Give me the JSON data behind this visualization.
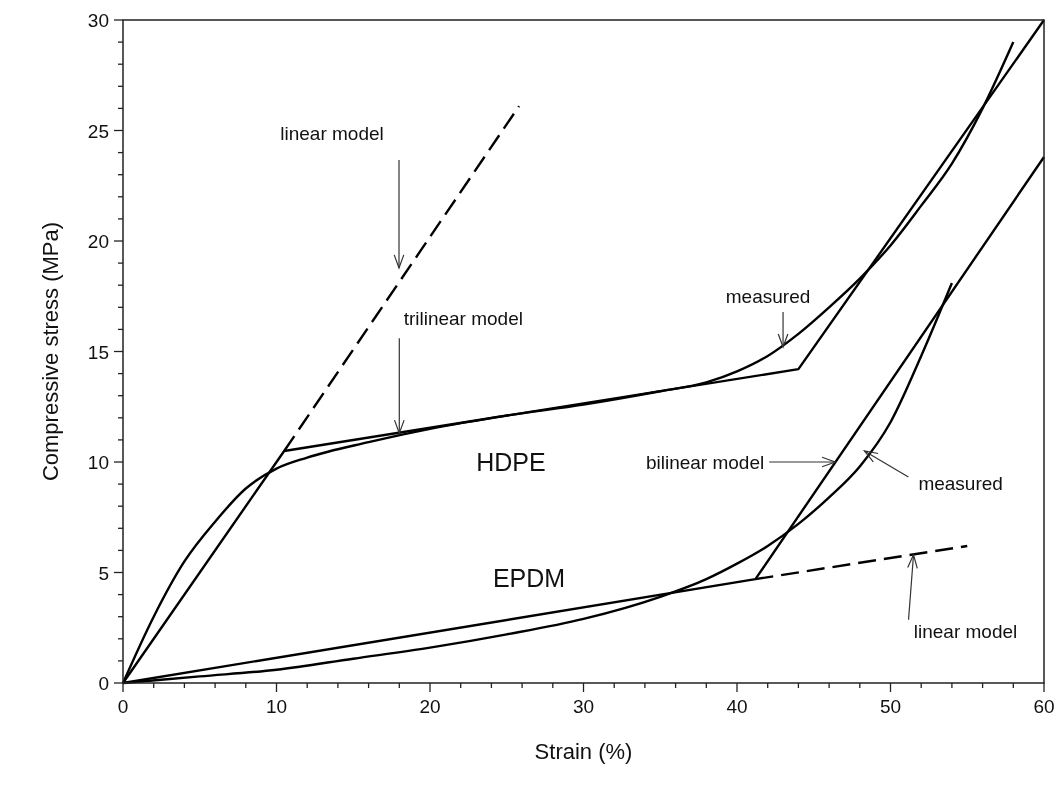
{
  "chart_data": {
    "type": "line",
    "xlabel": "Strain (%)",
    "ylabel": "Compressive stress (MPa)",
    "xlim": [
      0,
      60
    ],
    "ylim": [
      0,
      30
    ],
    "xticks": [
      0,
      {
        "value": 2,
        "label": null
      },
      {
        "value": 4,
        "label": null
      },
      {
        "value": 6,
        "label": null
      },
      {
        "value": 8,
        "label": null
      },
      10,
      {
        "value": 12,
        "label": null
      },
      {
        "value": 14,
        "label": null
      },
      {
        "value": 16,
        "label": null
      },
      {
        "value": 18,
        "label": null
      },
      20,
      {
        "value": 22,
        "label": null
      },
      {
        "value": 24,
        "label": null
      },
      {
        "value": 26,
        "label": null
      },
      {
        "value": 28,
        "label": null
      },
      30,
      {
        "value": 32,
        "label": null
      },
      {
        "value": 34,
        "label": null
      },
      {
        "value": 36,
        "label": null
      },
      {
        "value": 38,
        "label": null
      },
      40,
      {
        "value": 42,
        "label": null
      },
      {
        "value": 44,
        "label": null
      },
      {
        "value": 46,
        "label": null
      },
      {
        "value": 48,
        "label": null
      },
      50,
      {
        "value": 52,
        "label": null
      },
      {
        "value": 54,
        "label": null
      },
      {
        "value": 56,
        "label": null
      },
      {
        "value": 58,
        "label": null
      },
      60
    ],
    "yticks": [
      0,
      {
        "value": 1,
        "label": null
      },
      {
        "value": 2,
        "label": null
      },
      {
        "value": 3,
        "label": null
      },
      {
        "value": 4,
        "label": null
      },
      5,
      {
        "value": 6,
        "label": null
      },
      {
        "value": 7,
        "label": null
      },
      {
        "value": 8,
        "label": null
      },
      {
        "value": 9,
        "label": null
      },
      10,
      {
        "value": 11,
        "label": null
      },
      {
        "value": 12,
        "label": null
      },
      {
        "value": 13,
        "label": null
      },
      {
        "value": 14,
        "label": null
      },
      15,
      {
        "value": 16,
        "label": null
      },
      {
        "value": 17,
        "label": null
      },
      {
        "value": 18,
        "label": null
      },
      {
        "value": 19,
        "label": null
      },
      20,
      {
        "value": 21,
        "label": null
      },
      {
        "value": 22,
        "label": null
      },
      {
        "value": 23,
        "label": null
      },
      {
        "value": 24,
        "label": null
      },
      25,
      {
        "value": 26,
        "label": null
      },
      {
        "value": 27,
        "label": null
      },
      {
        "value": 28,
        "label": null
      },
      {
        "value": 29,
        "label": null
      },
      30
    ],
    "grid": false,
    "series": [
      {
        "color": "#000000",
        "line_style": "solid",
        "x": [
          0,
          2,
          4,
          6,
          8,
          10,
          12,
          16,
          20,
          25,
          30,
          35,
          38,
          40,
          42,
          44,
          46,
          48,
          50,
          52,
          54,
          56,
          58
        ],
        "values": [
          0,
          3,
          5.5,
          7.3,
          8.8,
          9.7,
          10.2,
          10.9,
          11.5,
          12.1,
          12.6,
          13.2,
          13.6,
          14.1,
          14.8,
          15.8,
          17,
          18.3,
          19.8,
          21.6,
          23.5,
          26,
          29
        ]
      },
      {
        "color": "#000000",
        "line_style": "solid",
        "x": [
          0,
          10.5,
          44,
          60
        ],
        "values": [
          0,
          10.5,
          14.2,
          30
        ]
      },
      {
        "color": "#000000",
        "line_style": "dashed",
        "x": [
          10.5,
          25.8
        ],
        "values": [
          10.5,
          26.1
        ]
      },
      {
        "color": "#000000",
        "line_style": "solid",
        "x": [
          0,
          5,
          10,
          15,
          20,
          25,
          30,
          35,
          38,
          40,
          42,
          44,
          46,
          48,
          50,
          52,
          54
        ],
        "values": [
          0,
          0.3,
          0.6,
          1.1,
          1.6,
          2.2,
          2.9,
          3.9,
          4.7,
          5.4,
          6.2,
          7.2,
          8.4,
          9.8,
          11.8,
          14.8,
          18.1
        ]
      },
      {
        "color": "#000000",
        "line_style": "solid",
        "x": [
          0,
          41.2,
          60
        ],
        "values": [
          0,
          4.7,
          23.8
        ]
      },
      {
        "color": "#000000",
        "line_style": "dashed",
        "x": [
          41.2,
          55
        ],
        "values": [
          4.7,
          6.2
        ]
      }
    ],
    "annotations": [
      "linear model",
      {
        "text": "trilinear model",
        "x": 18,
        "y": 11.3
      },
      {
        "text": "measured",
        "x": 43,
        "y": 15.2
      },
      {
        "text": "bilinear model",
        "x": 46.4,
        "y": 10
      },
      {
        "text": "measured",
        "x": 48.3,
        "y": 10.5
      },
      {
        "text": "linear model",
        "x": 51.5,
        "y": 5.8
      },
      "HDPE",
      "EPDM"
    ]
  }
}
